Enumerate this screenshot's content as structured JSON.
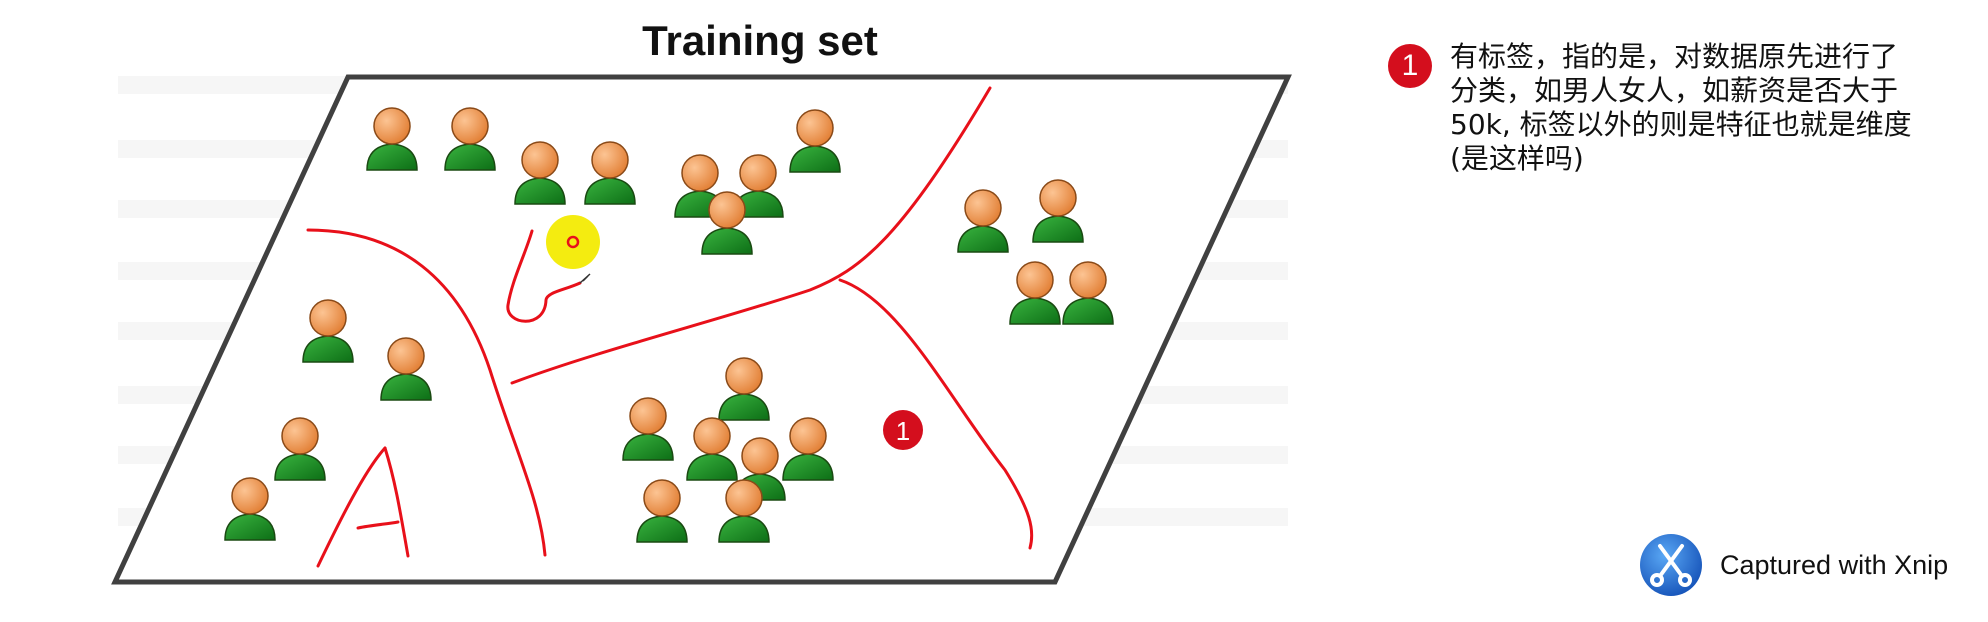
{
  "diagram": {
    "title": "Training set",
    "sketch_label": "A",
    "marker_label": "1",
    "colors": {
      "head": "#f0954a",
      "body": "#1f8f2a",
      "outline": "#1a4a12",
      "ink": "#e8101a",
      "cursor": "#f4ec10",
      "badge": "#d40e1d"
    }
  },
  "note": {
    "badge": "1",
    "text": "有标签，指的是，对数据原先进行了\n分类，如男人女人，如薪资是否大于\n50k, 标签以外的则是特征也就是维度\n(是这样吗)"
  },
  "watermark": {
    "label": "Captured with Xnip",
    "icon": "xnip-scissors-icon"
  }
}
